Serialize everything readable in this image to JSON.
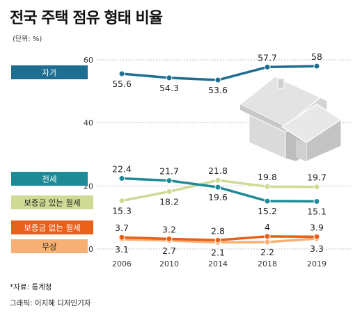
{
  "title": "전국 주택 점유 형태 비율",
  "unit": "(단위: %)",
  "source": "*자료: 통계청",
  "credit": "그래픽: 이지혜 디자인기자",
  "chart_data": {
    "type": "line",
    "x": [
      "2006",
      "2010",
      "2014",
      "2018",
      "2019"
    ],
    "y_ticks": [
      "60",
      "40",
      "20",
      "0"
    ],
    "ylim": [
      0,
      60
    ],
    "grid": "horizontal dashed",
    "legend_placement": "left",
    "series": [
      {
        "name": "자가",
        "color": "#1e6e91",
        "values": [
          55.6,
          54.3,
          53.6,
          57.7,
          58
        ],
        "labels": [
          "55.6",
          "54.3",
          "53.6",
          "57.7",
          "58"
        ]
      },
      {
        "name": "전세",
        "color": "#1e8a95",
        "values": [
          22.4,
          21.7,
          19.6,
          15.2,
          15.1
        ],
        "labels": [
          "22.4",
          "21.7",
          "19.6",
          "15.2",
          "15.1"
        ]
      },
      {
        "name": "보증금 있는 월세",
        "color": "#cfdb94",
        "values": [
          15.3,
          18.2,
          21.8,
          19.8,
          19.7
        ],
        "labels": [
          "15.3",
          "18.2",
          "21.8",
          "19.8",
          "19.7"
        ]
      },
      {
        "name": "보증금 없는 월세",
        "color": "#e8601a",
        "values": [
          3.7,
          3.2,
          2.8,
          4,
          3.9
        ],
        "labels": [
          "3.7",
          "3.2",
          "2.8",
          "4",
          "3.9"
        ]
      },
      {
        "name": "무상",
        "color": "#f6b073",
        "values": [
          3.1,
          2.7,
          2.1,
          2.2,
          3.3
        ],
        "labels": [
          "3.1",
          "2.7",
          "2.1",
          "2.2",
          "3.3"
        ]
      }
    ]
  }
}
